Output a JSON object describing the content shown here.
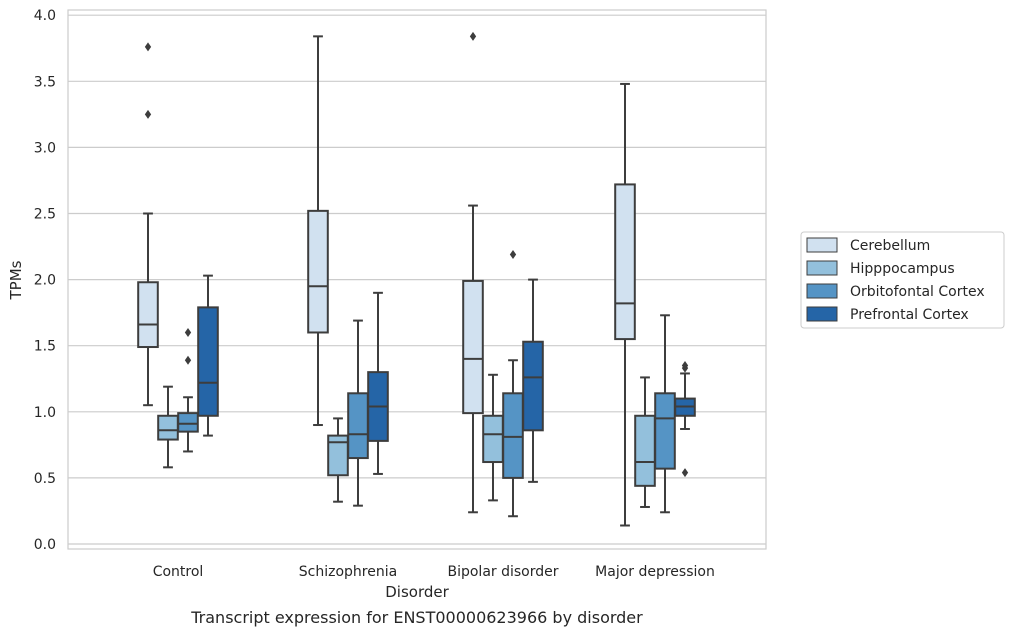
{
  "caption": "Transcript expression for ENST00000623966 by disorder",
  "chart_data": {
    "type": "box",
    "xlabel": "Disorder",
    "ylabel": "TPMs",
    "ylim": [
      -0.05,
      4.05
    ],
    "yticks": [
      0.0,
      0.5,
      1.0,
      1.5,
      2.0,
      2.5,
      3.0,
      3.5,
      4.0
    ],
    "ytick_labels": [
      "0.0",
      "0.5",
      "1.0",
      "1.5",
      "2.0",
      "2.5",
      "3.0",
      "3.5",
      "4.0"
    ],
    "grid": "horizontal",
    "legend_position": "right",
    "categories": [
      "Control",
      "Schizophrenia",
      "Bipolar disorder",
      "Major depression"
    ],
    "series": [
      {
        "name": "Cerebellum",
        "color": "#d1e1f0",
        "boxes": [
          {
            "whislo": 1.05,
            "q1": 1.49,
            "med": 1.66,
            "q3": 1.98,
            "whishi": 2.5,
            "fliers": [
              3.25,
              3.76
            ]
          },
          {
            "whislo": 0.9,
            "q1": 1.6,
            "med": 1.95,
            "q3": 2.52,
            "whishi": 3.84,
            "fliers": []
          },
          {
            "whislo": 0.24,
            "q1": 0.99,
            "med": 1.4,
            "q3": 1.99,
            "whishi": 2.56,
            "fliers": [
              3.84
            ]
          },
          {
            "whislo": 0.14,
            "q1": 1.55,
            "med": 1.82,
            "q3": 2.72,
            "whishi": 3.48,
            "fliers": []
          }
        ]
      },
      {
        "name": "Hipppocampus",
        "color": "#93c0dc",
        "boxes": [
          {
            "whislo": 0.58,
            "q1": 0.79,
            "med": 0.86,
            "q3": 0.97,
            "whishi": 1.19,
            "fliers": []
          },
          {
            "whislo": 0.32,
            "q1": 0.52,
            "med": 0.77,
            "q3": 0.82,
            "whishi": 0.95,
            "fliers": []
          },
          {
            "whislo": 0.33,
            "q1": 0.62,
            "med": 0.83,
            "q3": 0.97,
            "whishi": 1.28,
            "fliers": []
          },
          {
            "whislo": 0.28,
            "q1": 0.44,
            "med": 0.62,
            "q3": 0.97,
            "whishi": 1.26,
            "fliers": []
          }
        ]
      },
      {
        "name": "Orbitofontal Cortex",
        "color": "#5594c5",
        "boxes": [
          {
            "whislo": 0.7,
            "q1": 0.85,
            "med": 0.91,
            "q3": 0.99,
            "whishi": 1.11,
            "fliers": [
              1.39,
              1.6
            ]
          },
          {
            "whislo": 0.29,
            "q1": 0.65,
            "med": 0.83,
            "q3": 1.14,
            "whishi": 1.69,
            "fliers": []
          },
          {
            "whislo": 0.21,
            "q1": 0.5,
            "med": 0.81,
            "q3": 1.14,
            "whishi": 1.39,
            "fliers": [
              2.19
            ]
          },
          {
            "whislo": 0.24,
            "q1": 0.57,
            "med": 0.95,
            "q3": 1.14,
            "whishi": 1.73,
            "fliers": []
          }
        ]
      },
      {
        "name": "Prefrontal Cortex",
        "color": "#2565a7",
        "boxes": [
          {
            "whislo": 0.82,
            "q1": 0.97,
            "med": 1.22,
            "q3": 1.79,
            "whishi": 2.03,
            "fliers": []
          },
          {
            "whislo": 0.53,
            "q1": 0.78,
            "med": 1.04,
            "q3": 1.3,
            "whishi": 1.9,
            "fliers": []
          },
          {
            "whislo": 0.47,
            "q1": 0.86,
            "med": 1.26,
            "q3": 1.53,
            "whishi": 2.0,
            "fliers": []
          },
          {
            "whislo": 0.87,
            "q1": 0.97,
            "med": 1.04,
            "q3": 1.1,
            "whishi": 1.29,
            "fliers": [
              0.54,
              1.33,
              1.35
            ]
          }
        ]
      }
    ]
  }
}
